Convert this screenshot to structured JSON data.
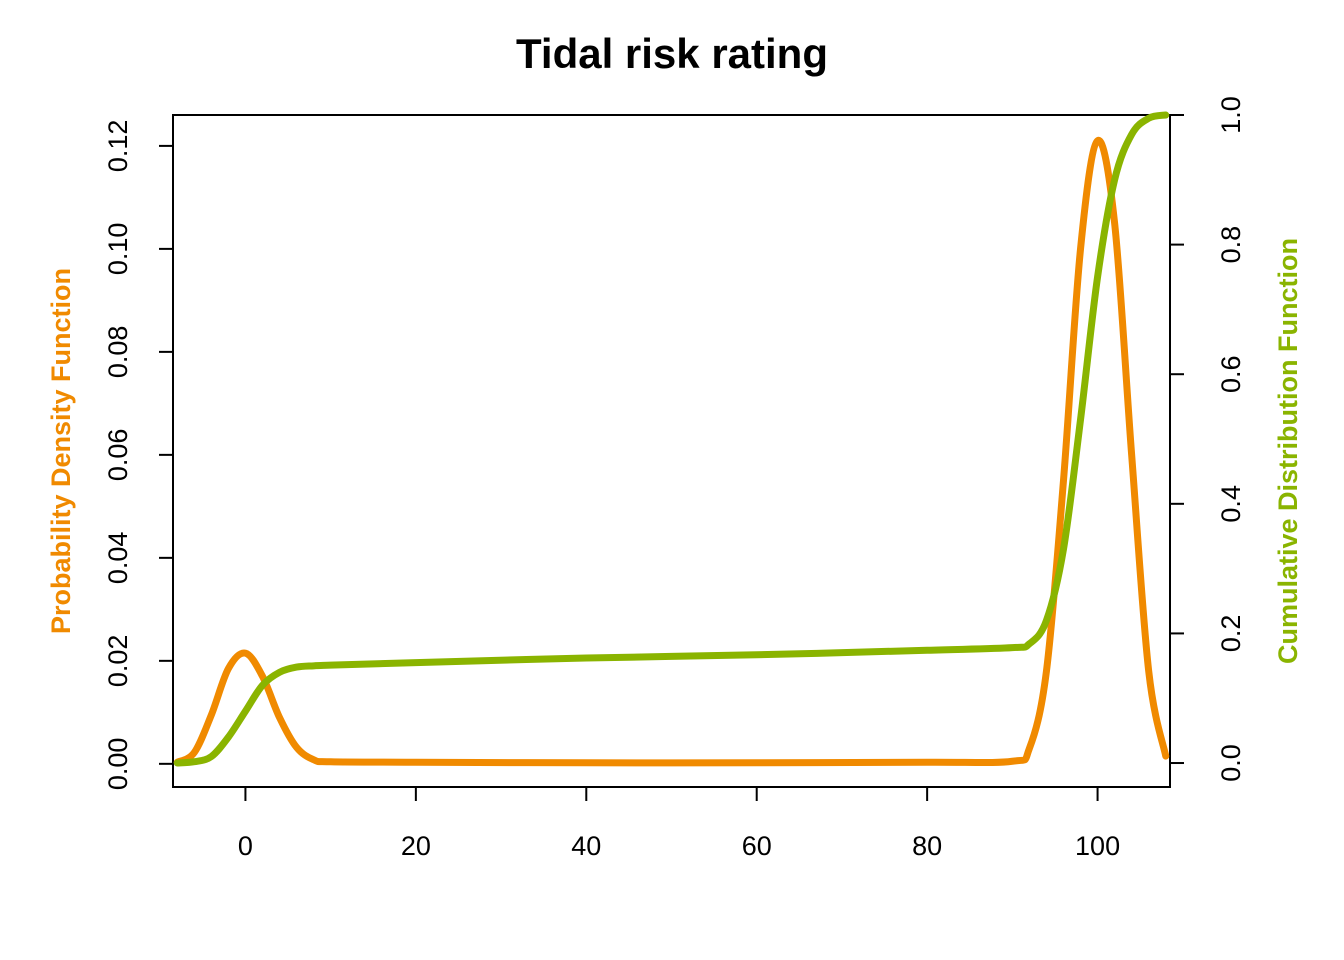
{
  "chart_data": {
    "type": "line",
    "title": "Tidal risk rating",
    "xlabel": "",
    "xlim": [
      -8.5,
      108.5
    ],
    "x_ticks": [
      "0",
      "20",
      "40",
      "60",
      "80",
      "100"
    ],
    "x_tick_values": [
      0,
      20,
      40,
      60,
      80,
      100
    ],
    "grid": false,
    "axes": {
      "left": {
        "label": "Probability Density Function",
        "color": "#F08A00",
        "ylim": [
          -0.0045,
          0.126
        ],
        "ticks": [
          "0.00",
          "0.02",
          "0.04",
          "0.06",
          "0.08",
          "0.10",
          "0.12"
        ],
        "tick_values": [
          0,
          0.02,
          0.04,
          0.06,
          0.08,
          0.1,
          0.12
        ]
      },
      "right": {
        "label": "Cumulative Distribution Function",
        "color": "#8AB400",
        "ylim": [
          -0.037,
          1.0
        ],
        "ticks": [
          "0.0",
          "0.2",
          "0.4",
          "0.6",
          "0.8",
          "1.0"
        ],
        "tick_values": [
          0,
          0.2,
          0.4,
          0.6,
          0.8,
          1.0
        ]
      }
    },
    "series": [
      {
        "axis": "left",
        "color": "#F08A00",
        "x": [
          -8,
          -6,
          -4,
          -2,
          0,
          2,
          4,
          6,
          8,
          10,
          20,
          40,
          60,
          80,
          90,
          92,
          94,
          96,
          98,
          100,
          102,
          104,
          106,
          108
        ],
        "y": [
          0.0003,
          0.0022,
          0.0095,
          0.0185,
          0.0215,
          0.017,
          0.009,
          0.0032,
          0.0008,
          0.0004,
          0.0003,
          0.0002,
          0.0002,
          0.0003,
          0.0005,
          0.003,
          0.018,
          0.055,
          0.1,
          0.121,
          0.105,
          0.06,
          0.018,
          0.0015
        ]
      },
      {
        "axis": "right",
        "color": "#8AB400",
        "x": [
          -8,
          -6,
          -4,
          -2,
          0,
          2,
          4,
          6,
          8,
          10,
          20,
          40,
          60,
          80,
          90,
          92,
          94,
          96,
          98,
          100,
          102,
          104,
          106,
          108
        ],
        "y": [
          0.0,
          0.002,
          0.01,
          0.04,
          0.08,
          0.12,
          0.14,
          0.148,
          0.15,
          0.151,
          0.155,
          0.162,
          0.167,
          0.174,
          0.178,
          0.184,
          0.22,
          0.33,
          0.53,
          0.75,
          0.9,
          0.97,
          0.995,
          1.0
        ]
      }
    ]
  }
}
